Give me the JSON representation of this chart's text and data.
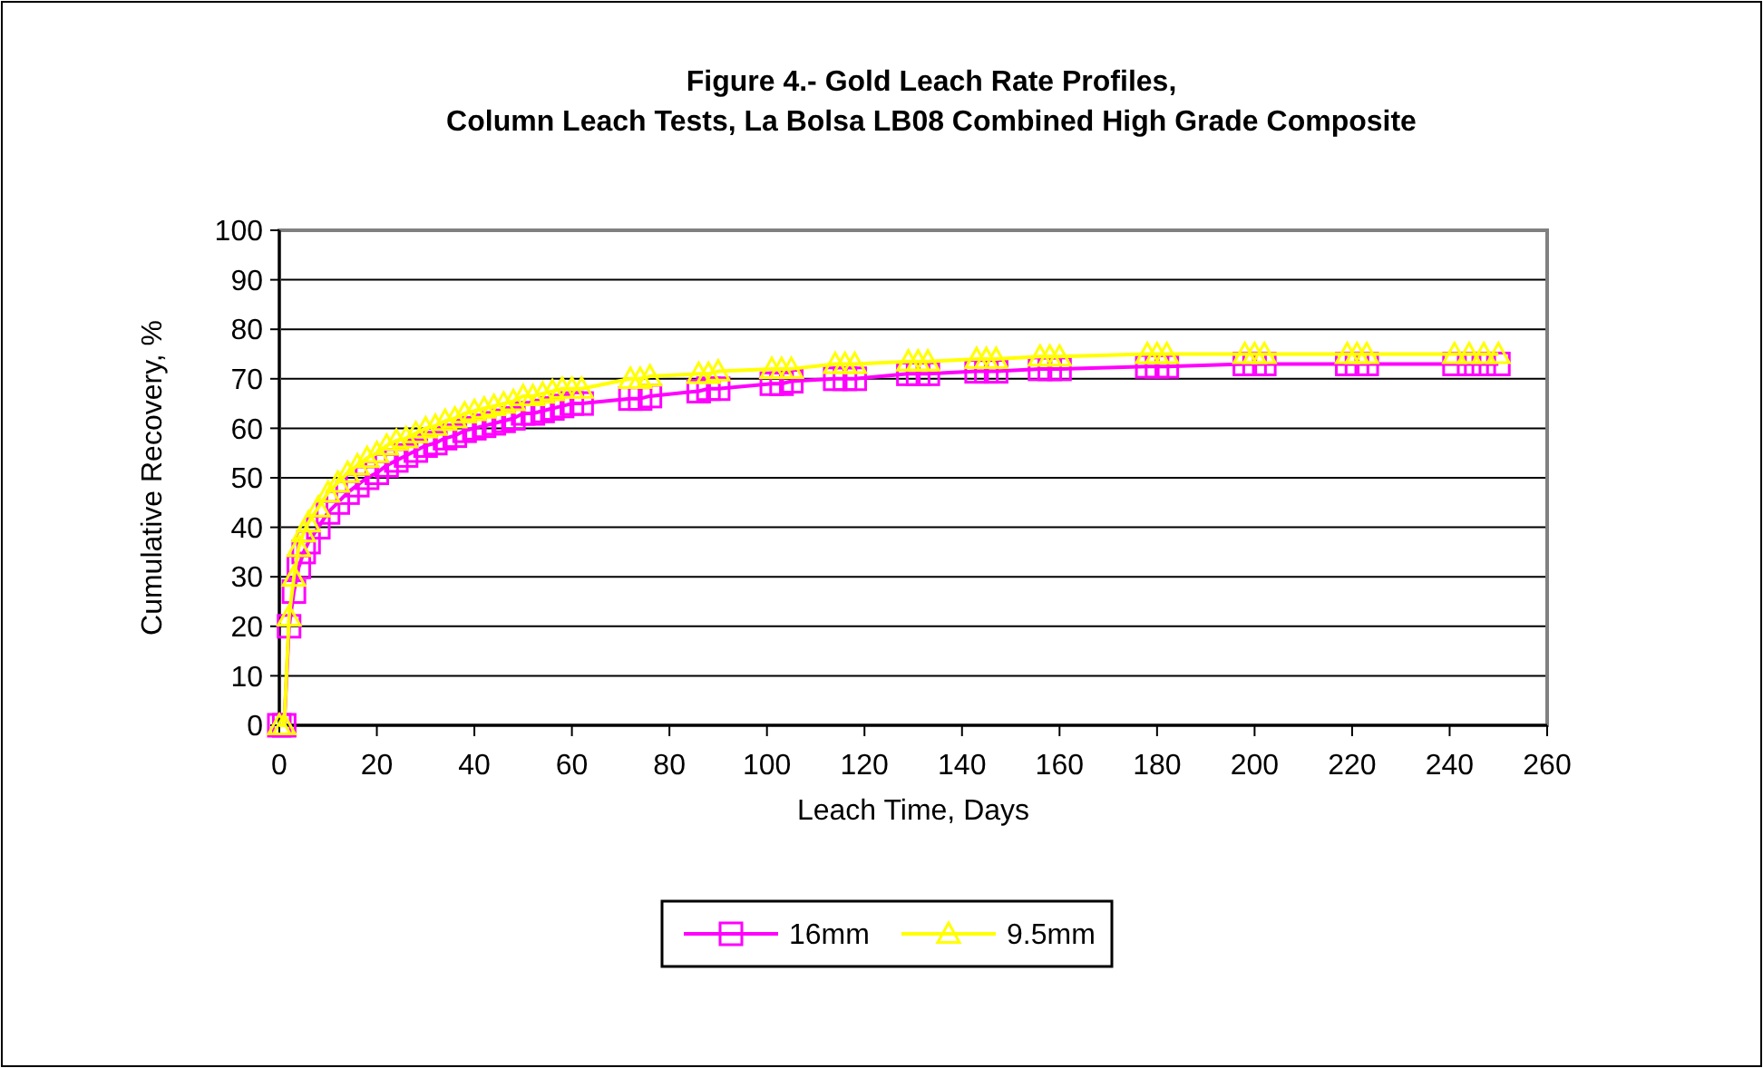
{
  "chart_data": {
    "type": "line",
    "title": "Figure 4.-  Gold Leach Rate Profiles,\nColumn Leach Tests, La Bolsa LB08 Combined High Grade Composite",
    "xlabel": "Leach Time, Days",
    "ylabel": "Cumulative Recovery, %",
    "xlim": [
      0,
      260
    ],
    "xticks": [
      0,
      20,
      40,
      60,
      80,
      100,
      120,
      140,
      160,
      180,
      200,
      220,
      240,
      260
    ],
    "ylim": [
      0,
      100
    ],
    "yticks": [
      0,
      10,
      20,
      30,
      40,
      50,
      60,
      70,
      80,
      90,
      100
    ],
    "grid": "y",
    "legend": "bottom",
    "line_style": "solid",
    "series": [
      {
        "name": "16mm",
        "color": "#ff00ff",
        "marker": "square",
        "x": [
          0,
          1,
          2,
          3,
          4,
          5,
          6,
          8,
          10,
          12,
          14,
          16,
          18,
          20,
          22,
          24,
          26,
          28,
          30,
          32,
          34,
          36,
          38,
          40,
          42,
          44,
          46,
          48,
          50,
          52,
          54,
          56,
          58,
          60,
          62,
          72,
          74,
          76,
          86,
          88,
          90,
          101,
          103,
          105,
          114,
          116,
          118,
          129,
          131,
          133,
          143,
          145,
          147,
          156,
          158,
          160,
          178,
          180,
          182,
          198,
          200,
          202,
          219,
          221,
          223,
          241,
          244,
          247,
          250
        ],
        "values": [
          0,
          0,
          20,
          27,
          32,
          35,
          37,
          40,
          43,
          45,
          47,
          48.5,
          50,
          51,
          52.5,
          53.5,
          54.5,
          55.5,
          56.5,
          57,
          58,
          58.5,
          59.5,
          60,
          60.5,
          61,
          61.5,
          62,
          63,
          63,
          63.5,
          64,
          64.5,
          65,
          65,
          66,
          66,
          66.5,
          67.5,
          68,
          68,
          69,
          69,
          69.5,
          70,
          70,
          70,
          71,
          71,
          71,
          71.5,
          71.5,
          71.5,
          72,
          72,
          72,
          72.5,
          72.5,
          72.5,
          73,
          73,
          73,
          73,
          73,
          73,
          73,
          73,
          73,
          73
        ]
      },
      {
        "name": "9.5mm",
        "color": "#ffff00",
        "marker": "triangle",
        "x": [
          0,
          1,
          2,
          3,
          4,
          5,
          6,
          8,
          10,
          12,
          14,
          16,
          18,
          20,
          22,
          24,
          26,
          28,
          30,
          32,
          34,
          36,
          38,
          40,
          42,
          44,
          46,
          48,
          50,
          52,
          54,
          56,
          58,
          60,
          62,
          72,
          74,
          76,
          86,
          88,
          90,
          101,
          103,
          105,
          114,
          116,
          118,
          129,
          131,
          133,
          143,
          145,
          147,
          156,
          158,
          160,
          178,
          180,
          182,
          198,
          200,
          202,
          219,
          221,
          223,
          241,
          244,
          247,
          250
        ],
        "values": [
          0,
          0,
          22,
          30,
          36,
          39,
          41,
          44,
          47,
          49,
          51,
          52.5,
          54,
          55,
          56.5,
          57.5,
          58,
          59,
          60,
          60.5,
          61.5,
          62,
          63,
          63.5,
          64,
          64.5,
          65,
          65.5,
          66.5,
          66.5,
          67,
          67.5,
          68,
          68,
          68,
          70,
          70,
          70.5,
          71,
          71,
          71.5,
          72,
          72,
          72,
          73,
          73,
          73,
          73.5,
          73.5,
          73.5,
          74,
          74,
          74,
          74.5,
          74.5,
          74.5,
          75,
          75,
          75,
          75,
          75,
          75,
          75,
          75,
          75,
          75,
          75,
          75,
          75
        ]
      }
    ]
  }
}
